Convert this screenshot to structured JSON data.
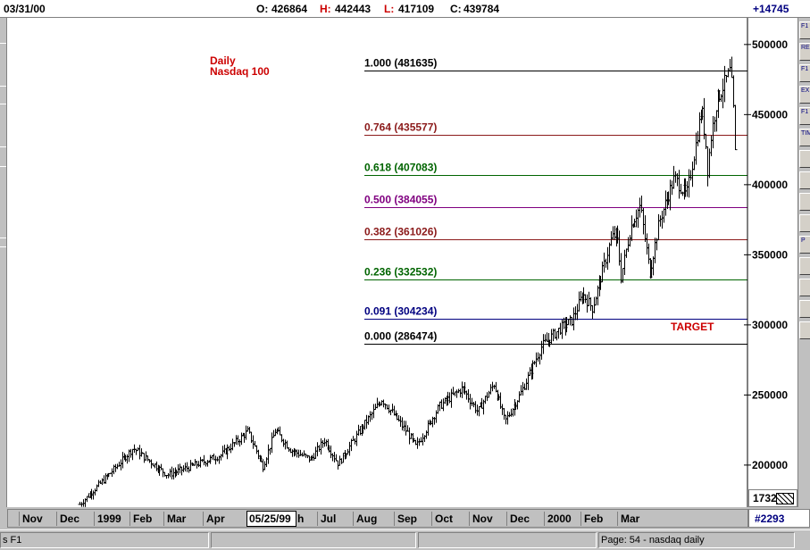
{
  "header": {
    "date": "03/31/00",
    "open_label": "O:",
    "open": "426864",
    "high_label": "H:",
    "high": "442443",
    "low_label": "L:",
    "low": "417109",
    "close_label": "C:",
    "close": "439784",
    "change": "+14745"
  },
  "chart_data": {
    "type": "ohlc-bar",
    "annotation_title": [
      "Daily",
      "Nasdaq 100"
    ],
    "target_label": "TARGET",
    "y_ticks": [
      200000,
      250000,
      300000,
      350000,
      400000,
      450000,
      500000
    ],
    "y_tick_labels": [
      "200000",
      "250000",
      "300000",
      "350000",
      "400000",
      "450000",
      "500000"
    ],
    "ylim": [
      170000,
      519000
    ],
    "fib_levels": [
      {
        "ratio": "1.000",
        "value": 481635,
        "label": "1.000 (481635)",
        "color": "#000000"
      },
      {
        "ratio": "0.764",
        "value": 435577,
        "label": "0.764 (435577)",
        "color": "#8b1a1a"
      },
      {
        "ratio": "0.618",
        "value": 407083,
        "label": "0.618 (407083)",
        "color": "#006400"
      },
      {
        "ratio": "0.500",
        "value": 384055,
        "label": "0.500 (384055)",
        "color": "#800080"
      },
      {
        "ratio": "0.382",
        "value": 361026,
        "label": "0.382 (361026)",
        "color": "#8b1a1a"
      },
      {
        "ratio": "0.236",
        "value": 332532,
        "label": "0.236 (332532)",
        "color": "#006400"
      },
      {
        "ratio": "0.091",
        "value": 304234,
        "label": "0.091 (304234)",
        "color": "#000080"
      },
      {
        "ratio": "0.000",
        "value": 286474,
        "label": "0.000 (286474)",
        "color": "#000000"
      }
    ],
    "price_path": [
      {
        "date": "1998-12-07",
        "value": 172000
      },
      {
        "date": "1998-12-31",
        "value": 196000
      },
      {
        "date": "1999-01-15",
        "value": 212000
      },
      {
        "date": "1999-02-09",
        "value": 193000
      },
      {
        "date": "1999-03-01",
        "value": 200000
      },
      {
        "date": "1999-03-20",
        "value": 207000
      },
      {
        "date": "1999-04-09",
        "value": 224000
      },
      {
        "date": "1999-04-20",
        "value": 199000
      },
      {
        "date": "1999-04-29",
        "value": 225000
      },
      {
        "date": "1999-05-10",
        "value": 211000
      },
      {
        "date": "1999-05-25",
        "value": 204000
      },
      {
        "date": "1999-06-04",
        "value": 218000
      },
      {
        "date": "1999-06-14",
        "value": 201000
      },
      {
        "date": "1999-07-01",
        "value": 226000
      },
      {
        "date": "1999-07-16",
        "value": 247000
      },
      {
        "date": "1999-08-03",
        "value": 224000
      },
      {
        "date": "1999-08-10",
        "value": 213000
      },
      {
        "date": "1999-08-27",
        "value": 242000
      },
      {
        "date": "1999-09-13",
        "value": 255000
      },
      {
        "date": "1999-09-24",
        "value": 238000
      },
      {
        "date": "1999-10-06",
        "value": 258000
      },
      {
        "date": "1999-10-14",
        "value": 231000
      },
      {
        "date": "1999-10-25",
        "value": 250000
      },
      {
        "date": "1999-11-10",
        "value": 285000
      },
      {
        "date": "1999-11-24",
        "value": 298000
      },
      {
        "date": "1999-12-02",
        "value": 303000
      },
      {
        "date": "1999-12-10",
        "value": 322000
      },
      {
        "date": "1999-12-17",
        "value": 312000
      },
      {
        "date": "1999-12-31",
        "value": 362000
      },
      {
        "date": "2000-01-04",
        "value": 365000
      },
      {
        "date": "2000-01-07",
        "value": 334000
      },
      {
        "date": "2000-01-14",
        "value": 370000
      },
      {
        "date": "2000-01-21",
        "value": 385000
      },
      {
        "date": "2000-01-28",
        "value": 337000
      },
      {
        "date": "2000-02-04",
        "value": 374000
      },
      {
        "date": "2000-02-15",
        "value": 405000
      },
      {
        "date": "2000-02-24",
        "value": 392000
      },
      {
        "date": "2000-03-01",
        "value": 425000
      },
      {
        "date": "2000-03-06",
        "value": 455000
      },
      {
        "date": "2000-03-09",
        "value": 430000
      },
      {
        "date": "2000-03-10",
        "value": 408000
      },
      {
        "date": "2000-03-13",
        "value": 436000
      },
      {
        "date": "2000-03-17",
        "value": 460000
      },
      {
        "date": "2000-03-27",
        "value": 481635
      },
      {
        "date": "2000-03-29",
        "value": 452000
      },
      {
        "date": "2000-03-30",
        "value": 418000
      },
      {
        "date": "2000-03-31",
        "value": 439784
      }
    ],
    "x_month_labels": [
      "Nov",
      "Dec",
      "1999",
      "Feb",
      "Mar",
      "Apr",
      "05/25/99",
      "Jul",
      "Aug",
      "Sep",
      "Oct",
      "Nov",
      "Dec",
      "2000",
      "Feb",
      "Mar"
    ],
    "y_partial_label": "1732"
  },
  "footer": {
    "cursor_date": "05/25/99",
    "bar_count": "#2293",
    "status_left": "s F1",
    "page_label": "Page: 54 - nasdaq daily"
  },
  "toolbar_icons": [
    "text-icon",
    "report-icon",
    "text-icon",
    "report-icon",
    "zoom-icon",
    "arrows-icon",
    "color-icon",
    "panel-icon",
    "p-icon",
    "monitor-icon",
    "crosshair-icon",
    "zoom-icon",
    "arrows-icon",
    "print-icon",
    "image-icon"
  ],
  "toolbar_labels": [
    "F1",
    "RE",
    "F1",
    "EX",
    "F1",
    "TIM",
    "",
    "",
    "",
    "",
    "P",
    "",
    "",
    "",
    ""
  ],
  "colors": {
    "up": "#000000",
    "target": "#cc0000",
    "title": "#cc0000"
  }
}
